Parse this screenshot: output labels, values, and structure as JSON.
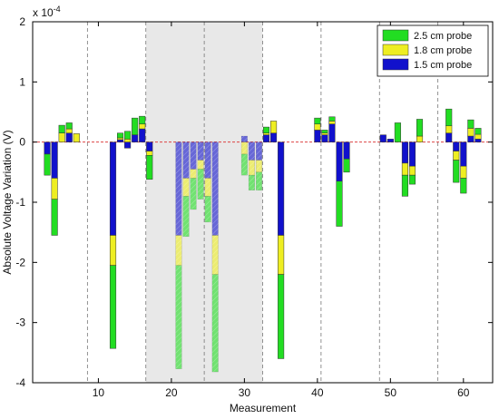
{
  "chart_data": {
    "type": "bar",
    "xlabel": "Measurement",
    "ylabel": "Absolute Voltage Variation (V)",
    "y_exponent_label": "x 10",
    "y_exponent_power": "-4",
    "xlim": [
      1,
      64
    ],
    "ylim": [
      -4,
      2
    ],
    "xticks": [
      10,
      20,
      30,
      40,
      50,
      60
    ],
    "yticks": [
      2,
      1,
      0,
      -1,
      -2,
      -3,
      -4
    ],
    "grid": false,
    "legend_position": "top-right",
    "stacked": true,
    "series": [
      {
        "name": "2.5 cm probe",
        "color": "#22dd22"
      },
      {
        "name": "1.8 cm probe",
        "color": "#eeee22"
      },
      {
        "name": "1.5 cm probe",
        "color": "#1111cc"
      }
    ],
    "shaded_region": {
      "x": [
        16.5,
        32.5
      ],
      "color": "#e8e8e8"
    },
    "dashed_vlines": [
      8.5,
      16.5,
      24.5,
      32.5,
      40.5,
      48.5,
      56.5
    ],
    "zero_line_color": "#dd4444",
    "bars": [
      {
        "x": 3,
        "v15": -0.2,
        "v18": 0.0,
        "v25": -0.35
      },
      {
        "x": 4,
        "v15": -0.6,
        "v18": -0.35,
        "v25": -0.6
      },
      {
        "x": 5,
        "v15": 0.0,
        "v18": 0.15,
        "v25": 0.13
      },
      {
        "x": 6,
        "v15": 0.15,
        "v18": 0.07,
        "v25": 0.1
      },
      {
        "x": 7,
        "v15": 0.0,
        "v18": 0.14,
        "v25": 0.0
      },
      {
        "x": 12,
        "v15": -1.55,
        "v18": -0.5,
        "v25": -1.38
      },
      {
        "x": 13,
        "v15": 0.04,
        "v18": 0.03,
        "v25": 0.08
      },
      {
        "x": 14,
        "v15": -0.1,
        "v18": 0.05,
        "v25": 0.13
      },
      {
        "x": 15,
        "v15": 0.12,
        "v18": 0.0,
        "v25": 0.28
      },
      {
        "x": 16,
        "v15": 0.22,
        "v18": 0.08,
        "v25": 0.13
      },
      {
        "x": 17,
        "v15": -0.15,
        "v18": -0.07,
        "v25": -0.4
      },
      {
        "x": 21,
        "v15": -1.55,
        "v18": -0.5,
        "v25": -1.72,
        "faded": true
      },
      {
        "x": 22,
        "v15": -0.6,
        "v18": -0.3,
        "v25": -0.67,
        "faded": true
      },
      {
        "x": 23,
        "v15": -0.45,
        "v18": -0.15,
        "v25": -0.52,
        "faded": true
      },
      {
        "x": 24,
        "v15": -0.3,
        "v18": -0.15,
        "v25": -0.5,
        "faded": true
      },
      {
        "x": 25,
        "v15": -0.6,
        "v18": -0.3,
        "v25": -0.43,
        "faded": true
      },
      {
        "x": 26,
        "v15": -1.55,
        "v18": -0.65,
        "v25": -1.62,
        "faded": true
      },
      {
        "x": 30,
        "v15": 0.1,
        "v18": -0.2,
        "v25": -0.35,
        "faded": true
      },
      {
        "x": 31,
        "v15": -0.3,
        "v18": -0.25,
        "v25": -0.25,
        "faded": true
      },
      {
        "x": 32,
        "v15": -0.3,
        "v18": -0.2,
        "v25": -0.3,
        "faded": true
      },
      {
        "x": 33,
        "v15": 0.12,
        "v18": 0.03,
        "v25": 0.1
      },
      {
        "x": 34,
        "v15": 0.15,
        "v18": 0.2,
        "v25": 0.0
      },
      {
        "x": 35,
        "v15": -1.55,
        "v18": -0.65,
        "v25": -1.4
      },
      {
        "x": 40,
        "v15": 0.2,
        "v18": 0.1,
        "v25": 0.1
      },
      {
        "x": 41,
        "v15": 0.12,
        "v18": 0.03,
        "v25": 0.05
      },
      {
        "x": 42,
        "v15": 0.3,
        "v18": 0.05,
        "v25": 0.07
      },
      {
        "x": 43,
        "v15": -0.65,
        "v18": 0.0,
        "v25": -0.75
      },
      {
        "x": 44,
        "v15": -0.28,
        "v18": 0.0,
        "v25": -0.22
      },
      {
        "x": 49,
        "v15": 0.12,
        "v18": 0.0,
        "v25": 0.0
      },
      {
        "x": 50,
        "v15": 0.05,
        "v18": 0.0,
        "v25": 0.0
      },
      {
        "x": 51,
        "v15": 0.0,
        "v18": 0.0,
        "v25": 0.32
      },
      {
        "x": 52,
        "v15": -0.35,
        "v18": -0.2,
        "v25": -0.35
      },
      {
        "x": 53,
        "v15": -0.4,
        "v18": -0.15,
        "v25": -0.15
      },
      {
        "x": 54,
        "v15": 0.0,
        "v18": 0.1,
        "v25": 0.28
      },
      {
        "x": 58,
        "v15": 0.15,
        "v18": 0.12,
        "v25": 0.28
      },
      {
        "x": 59,
        "v15": -0.15,
        "v18": -0.15,
        "v25": -0.37
      },
      {
        "x": 60,
        "v15": -0.4,
        "v18": -0.2,
        "v25": -0.25
      },
      {
        "x": 61,
        "v15": 0.1,
        "v18": 0.13,
        "v25": 0.14
      },
      {
        "x": 62,
        "v15": 0.05,
        "v18": 0.08,
        "v25": 0.1
      }
    ]
  }
}
